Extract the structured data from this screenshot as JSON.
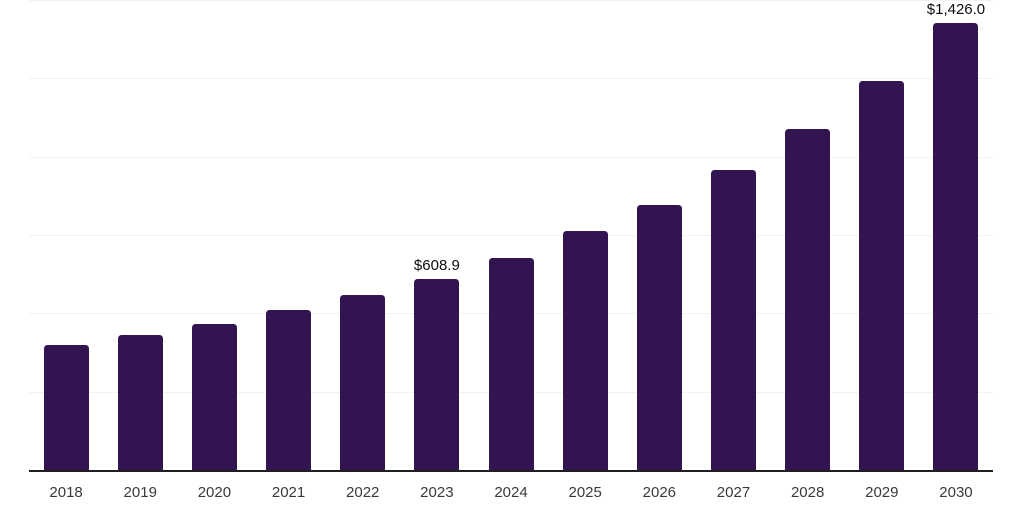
{
  "chart_data": {
    "type": "bar",
    "title": "",
    "xlabel": "",
    "ylabel": "",
    "categories": [
      "2018",
      "2019",
      "2020",
      "2021",
      "2022",
      "2023",
      "2024",
      "2025",
      "2026",
      "2027",
      "2028",
      "2029",
      "2030"
    ],
    "values": [
      398.6,
      432.2,
      466.1,
      510.5,
      557.1,
      608.9,
      677.6,
      762.6,
      844.3,
      957.6,
      1087.6,
      1241.9,
      1426.0
    ],
    "data_labels": {
      "2023": "$608.9",
      "2030": "$1,426.0"
    },
    "ylim": [
      0,
      1500
    ],
    "gridline_step": 250,
    "grid": "horizontal-only",
    "legend_position": "none",
    "colors": {
      "bar": "#321450",
      "axis_line": "#1f1f1f",
      "gridline": "#f2f2f4",
      "tick_label": "#3a3a3a",
      "data_label": "#0d0d0d",
      "background": "#ffffff"
    }
  }
}
